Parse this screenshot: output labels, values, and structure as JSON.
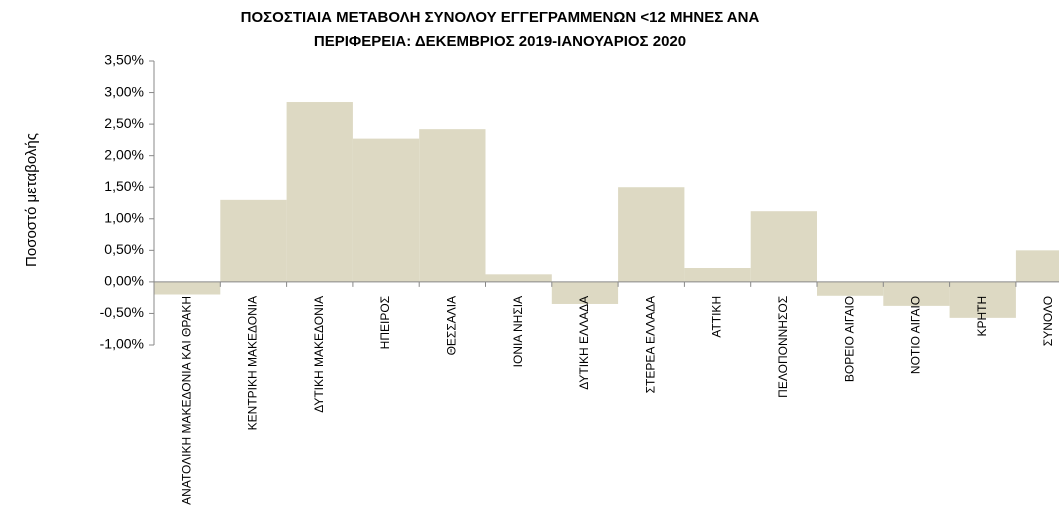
{
  "chart_data": {
    "type": "bar",
    "title": [
      "ΠΟΣΟΣΤΙΑΙΑ ΜΕΤΑΒΟΛΗ  ΣΥΝΟΛΟΥ ΕΓΓΕΓΡΑΜΜΕΝΩΝ <12 ΜΗΝΕΣ ΑΝΑ",
      "ΠΕΡΙΦΕΡΕΙΑ: ΔΕΚΕΜΒΡΙΟΣ 2019-ΙΑΝΟΥΑΡΙΟΣ 2020"
    ],
    "y_label": "Ποσοστό μεταβολής",
    "categories": [
      "ΑΝΑΤΟΛΙΚΗ ΜΑΚΕΔΟΝΙΑ ΚΑΙ ΘΡΑΚΗ",
      "ΚΕΝΤΡΙΚΗ ΜΑΚΕΔΟΝΙΑ",
      "ΔΥΤΙΚΗ ΜΑΚΕΔΟΝΙΑ",
      "ΗΠΕΙΡΟΣ",
      "ΘΕΣΣΑΛΙΑ",
      "ΙΟΝΙΑ ΝΗΣΙΑ",
      "ΔΥΤΙΚΗ ΕΛΛΑΔΑ",
      "ΣΤΕΡΕΑ ΕΛΛΑΔΑ",
      "ΑΤΤΙΚΗ",
      "ΠΕΛΟΠΟΝΝΗΣΟΣ",
      "ΒΟΡΕΙΟ ΑΙΓΑΙΟ",
      "ΝΟΤΙΟ ΑΙΓΑΙΟ",
      "ΚΡΗΤΗ",
      "ΣΥΝΟΛΟ"
    ],
    "values": [
      -0.2,
      1.3,
      2.85,
      2.27,
      2.42,
      0.12,
      -0.35,
      1.5,
      0.22,
      1.12,
      -0.22,
      -0.38,
      -0.57,
      0.5
    ],
    "color": "#ddd9c3",
    "ylim": [
      -1,
      3.5
    ],
    "yticks": [
      {
        "value": -1,
        "label": "-1,00%"
      },
      {
        "value": -0.5,
        "label": "-0,50%"
      },
      {
        "value": 0,
        "label": "0,00%"
      },
      {
        "value": 0.5,
        "label": "0,50%"
      },
      {
        "value": 1,
        "label": "1,00%"
      },
      {
        "value": 1.5,
        "label": "1,50%"
      },
      {
        "value": 2,
        "label": "2,00%"
      },
      {
        "value": 2.5,
        "label": "2,50%"
      },
      {
        "value": 3,
        "label": "3,00%"
      },
      {
        "value": 3.5,
        "label": "3,50%"
      }
    ],
    "grid": false
  }
}
